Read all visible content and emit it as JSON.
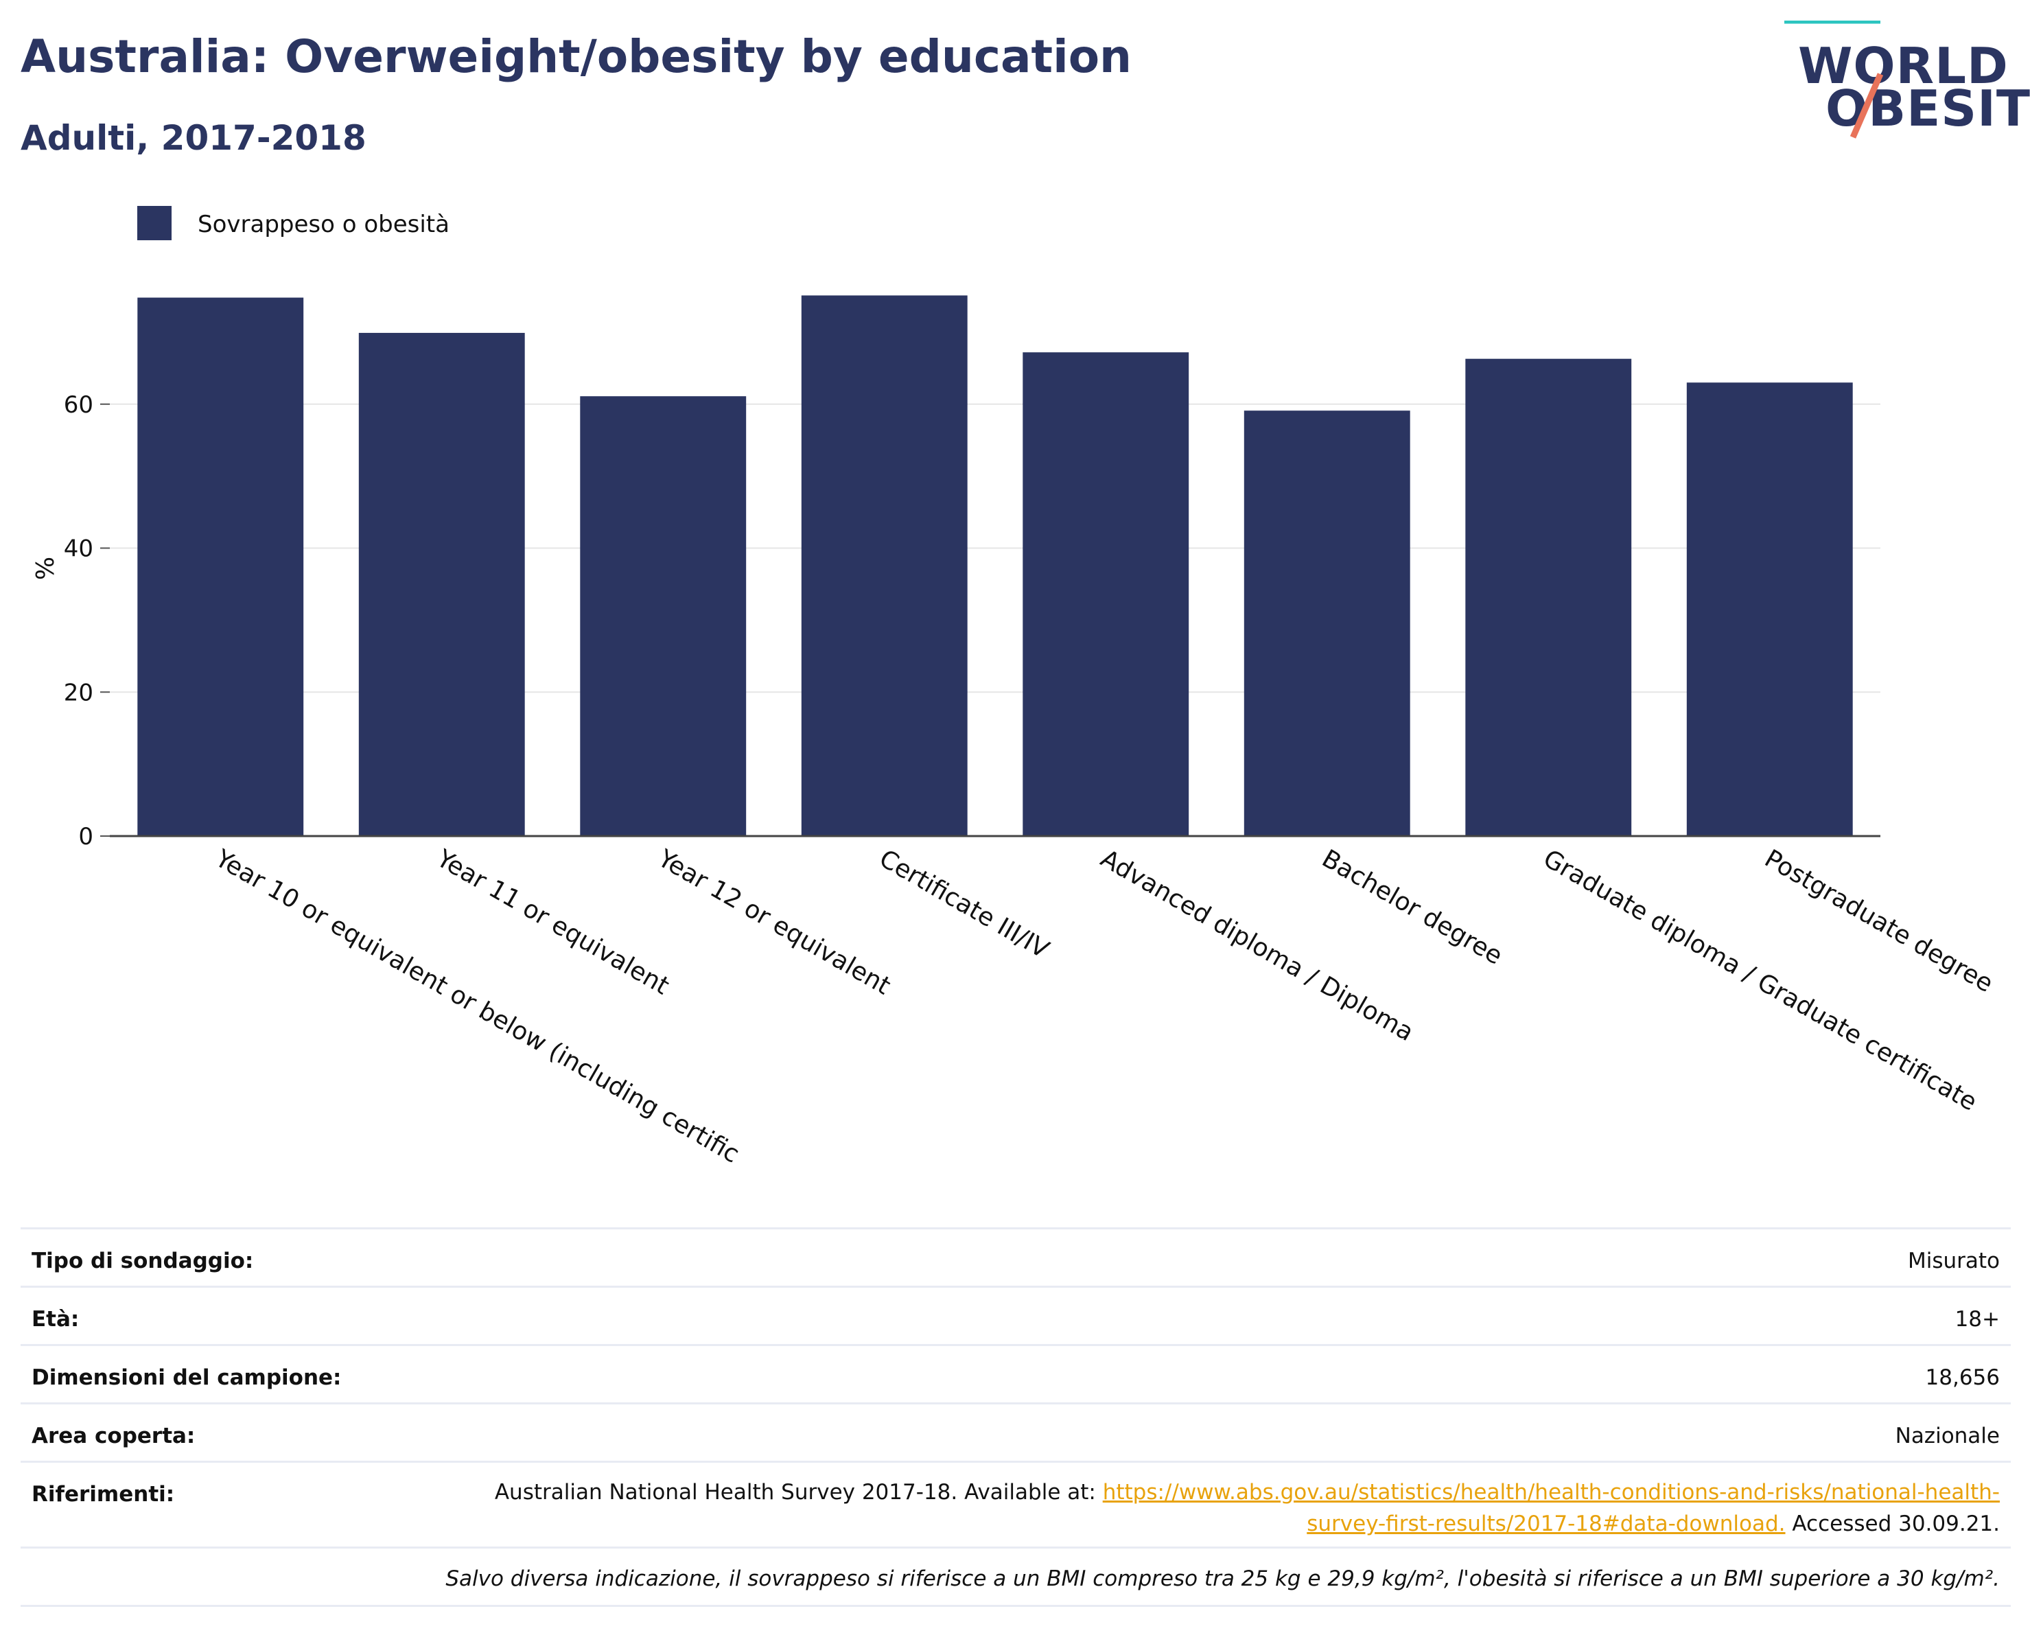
{
  "header": {
    "title": "Australia: Overweight/obesity by education",
    "subtitle": "Adulti, 2017-2018"
  },
  "logo": {
    "line1": "WORLD",
    "line2": "OBESITY",
    "accent_colors": [
      "#2cc5c0",
      "#e8735a"
    ]
  },
  "chart_data": {
    "type": "bar",
    "categories": [
      "Year 10 or equivalent or below (including certific",
      "Year 11 or equivalent",
      "Year 12 or equivalent",
      "Certificate III/IV",
      "Advanced diploma / Diploma",
      "Bachelor degree",
      "Graduate diploma / Graduate certificate",
      "Postgraduate degree"
    ],
    "series": [
      {
        "name": "Sovrappeso o obesità",
        "color": "#2b3561",
        "values": [
          74.8,
          69.9,
          61.1,
          75.1,
          67.2,
          59.1,
          66.3,
          63.0
        ]
      }
    ],
    "ylabel": "%",
    "ylim": [
      0,
      78
    ],
    "yticks": [
      0,
      20,
      40,
      60
    ],
    "grid": true,
    "legend": "top-left"
  },
  "info": {
    "rows": [
      {
        "label": "Tipo di sondaggio:",
        "value": "Misurato"
      },
      {
        "label": "Età:",
        "value": "18+"
      },
      {
        "label": "Dimensioni del campione:",
        "value": "18,656"
      },
      {
        "label": "Area coperta:",
        "value": "Nazionale"
      }
    ],
    "references": {
      "label": "Riferimenti:",
      "prefix": "Australian National Health Survey 2017-18. Available at: ",
      "link": "https://www.abs.gov.au/statistics/health/health-conditions-and-risks/national-health-survey-first-results/2017-18#data-download.",
      "suffix": " Accessed 30.09.21."
    },
    "note": "Salvo diversa indicazione, il sovrappeso si riferisce a un BMI compreso tra 25 kg e 29,9 kg/m², l'obesità si riferisce a un BMI superiore a 30 kg/m²."
  }
}
